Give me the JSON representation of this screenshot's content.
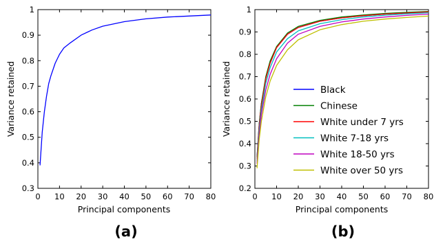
{
  "chart_data": [
    {
      "panel": "(a)",
      "type": "line",
      "title": "",
      "xlabel": "Principal components",
      "ylabel": "Variance retained",
      "xlim": [
        0,
        80
      ],
      "ylim": [
        0.3,
        1.0
      ],
      "xticks": [
        0,
        10,
        20,
        30,
        40,
        50,
        60,
        70,
        80
      ],
      "yticks": [
        0.3,
        0.4,
        0.5,
        0.6,
        0.7,
        0.8,
        0.9,
        1.0
      ],
      "grid": false,
      "series": [
        {
          "color": "#0000ff",
          "x": [
            1,
            2,
            3,
            4,
            5,
            6,
            8,
            10,
            12,
            15,
            20,
            25,
            30,
            40,
            50,
            60,
            70,
            80
          ],
          "y": [
            0.39,
            0.52,
            0.6,
            0.66,
            0.71,
            0.74,
            0.79,
            0.825,
            0.85,
            0.87,
            0.9,
            0.92,
            0.935,
            0.953,
            0.964,
            0.971,
            0.975,
            0.979
          ]
        }
      ]
    },
    {
      "panel": "(b)",
      "type": "line",
      "title": "",
      "xlabel": "Principal components",
      "ylabel": "Variance retained",
      "xlim": [
        0,
        80
      ],
      "ylim": [
        0.2,
        1.0
      ],
      "xticks": [
        0,
        10,
        20,
        30,
        40,
        50,
        60,
        70,
        80
      ],
      "yticks": [
        0.2,
        0.3,
        0.4,
        0.5,
        0.6,
        0.7,
        0.8,
        0.9,
        1.0
      ],
      "grid": false,
      "legend_position": "center-right",
      "series": [
        {
          "name": "Black",
          "color": "#0000ff",
          "x": [
            1,
            2,
            3,
            5,
            7,
            10,
            15,
            20,
            30,
            40,
            50,
            60,
            70,
            80
          ],
          "y": [
            0.34,
            0.49,
            0.58,
            0.69,
            0.76,
            0.83,
            0.89,
            0.92,
            0.948,
            0.963,
            0.973,
            0.98,
            0.985,
            0.99
          ]
        },
        {
          "name": "Chinese",
          "color": "#007f00",
          "x": [
            1,
            2,
            3,
            5,
            7,
            10,
            15,
            20,
            30,
            40,
            50,
            60,
            70,
            80
          ],
          "y": [
            0.34,
            0.49,
            0.58,
            0.7,
            0.77,
            0.835,
            0.895,
            0.925,
            0.952,
            0.967,
            0.976,
            0.983,
            0.988,
            0.992
          ]
        },
        {
          "name": "White under 7 yrs",
          "color": "#ff0000",
          "x": [
            1,
            2,
            3,
            5,
            7,
            10,
            15,
            20,
            30,
            40,
            50,
            60,
            70,
            80
          ],
          "y": [
            0.33,
            0.48,
            0.57,
            0.69,
            0.76,
            0.83,
            0.89,
            0.92,
            0.948,
            0.963,
            0.973,
            0.98,
            0.985,
            0.99
          ]
        },
        {
          "name": "White 7-18 yrs",
          "color": "#00bfbf",
          "x": [
            1,
            2,
            3,
            5,
            7,
            10,
            15,
            20,
            30,
            40,
            50,
            60,
            70,
            80
          ],
          "y": [
            0.32,
            0.46,
            0.55,
            0.67,
            0.74,
            0.81,
            0.87,
            0.905,
            0.937,
            0.955,
            0.967,
            0.975,
            0.981,
            0.986
          ]
        },
        {
          "name": "White 18-50 yrs",
          "color": "#bf00bf",
          "x": [
            1,
            2,
            3,
            5,
            7,
            10,
            15,
            20,
            30,
            40,
            50,
            60,
            70,
            80
          ],
          "y": [
            0.31,
            0.44,
            0.53,
            0.64,
            0.71,
            0.78,
            0.85,
            0.89,
            0.925,
            0.945,
            0.958,
            0.967,
            0.974,
            0.98
          ]
        },
        {
          "name": "White over 50 yrs",
          "color": "#bfbf00",
          "x": [
            1,
            2,
            3,
            5,
            7,
            10,
            15,
            20,
            30,
            40,
            50,
            60,
            70,
            80
          ],
          "y": [
            0.29,
            0.42,
            0.5,
            0.61,
            0.68,
            0.75,
            0.82,
            0.865,
            0.91,
            0.933,
            0.948,
            0.958,
            0.965,
            0.971
          ]
        }
      ]
    }
  ]
}
